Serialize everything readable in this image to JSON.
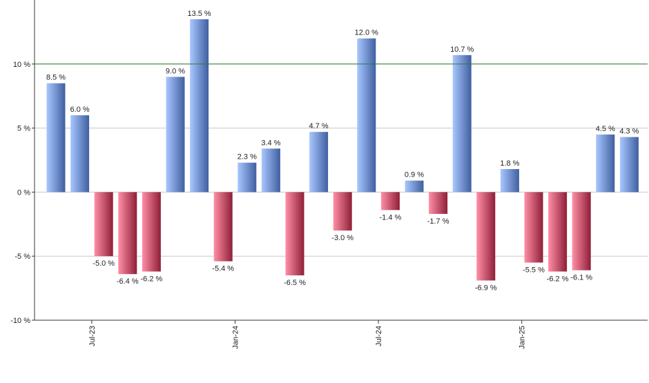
{
  "chart_data": {
    "type": "bar",
    "title": "",
    "xlabel": "",
    "ylabel": "",
    "ylim": [
      -10,
      15
    ],
    "y_ticks": [
      {
        "value": -10,
        "label": "-10 %"
      },
      {
        "value": -5,
        "label": "-5 %"
      },
      {
        "value": 0,
        "label": "0 %"
      },
      {
        "value": 5,
        "label": "5 %"
      },
      {
        "value": 10,
        "label": "10 %"
      }
    ],
    "reference_line": {
      "value": 10,
      "color": "#2e7d32"
    },
    "grid": true,
    "x_tick_labels": [
      {
        "bar_index": 1,
        "label": "Jul-23"
      },
      {
        "bar_index": 7,
        "label": "Jan-24"
      },
      {
        "bar_index": 13,
        "label": "Jul-24"
      },
      {
        "bar_index": 19,
        "label": "Jan-25"
      }
    ],
    "values": [
      8.5,
      6.0,
      -5.0,
      -6.4,
      -6.2,
      9.0,
      13.5,
      -5.4,
      2.3,
      3.4,
      -6.5,
      4.7,
      -3.0,
      12.0,
      -1.4,
      0.9,
      -1.7,
      10.7,
      -6.9,
      1.8,
      -5.5,
      -6.2,
      -6.1,
      4.5,
      4.3
    ],
    "value_labels": [
      "8.5 %",
      "6.0 %",
      "-5.0 %",
      "-6.4 %",
      "-6.2 %",
      "9.0 %",
      "13.5 %",
      "-5.4 %",
      "2.3 %",
      "3.4 %",
      "-6.5 %",
      "4.7 %",
      "-3.0 %",
      "12.0 %",
      "-1.4 %",
      "0.9 %",
      "-1.7 %",
      "10.7 %",
      "-6.9 %",
      "1.8 %",
      "-5.5 %",
      "-6.2 %",
      "-6.1 %",
      "4.5 %",
      "4.3 %"
    ],
    "colors": {
      "positive_light": "#a9c7ff",
      "positive_dark": "#3f5fa0",
      "negative_light": "#ff8fa6",
      "negative_dark": "#8f1f38",
      "axis": "#333333",
      "grid": "#c8c8c8"
    }
  }
}
